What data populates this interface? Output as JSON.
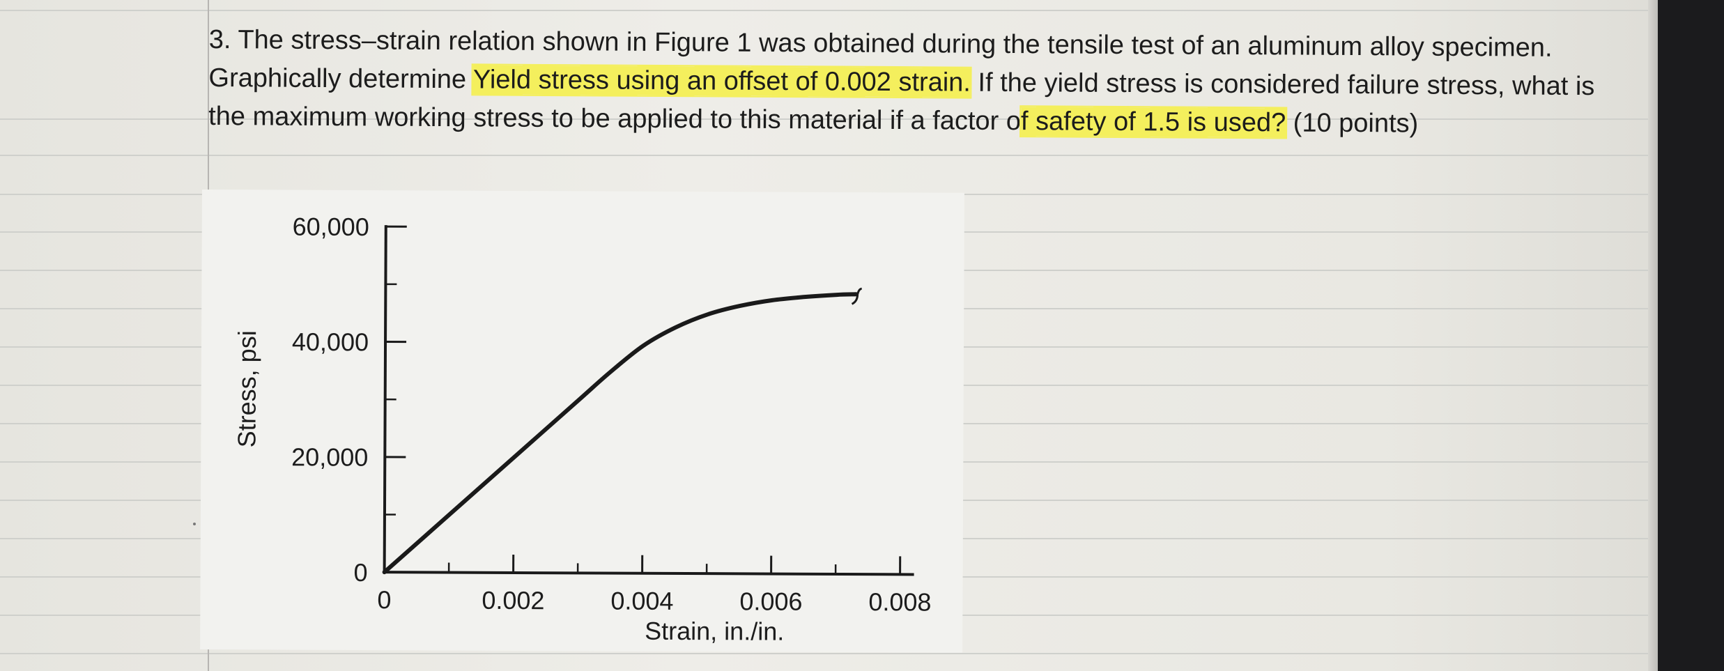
{
  "question": {
    "part1": "3. The stress–strain relation shown in Figure 1 was obtained during the tensile test of an aluminum alloy specimen. Graphically determine ",
    "highlight1": "Yield stress using an offset of 0.002 strain.",
    "part2": " If the yield stress is considered failure stress, what is the maximum working stress to be applied to this material if a factor o",
    "highlight2": "f safety of 1.5 is used?",
    "part3": " (10 points)"
  },
  "colors": {
    "highlight": "#f4ef5d",
    "curve": "#1a1a1a"
  },
  "chart_data": {
    "type": "line",
    "title": "",
    "xlabel": "Strain, in./in.",
    "ylabel": "Stress, psi",
    "xlim": [
      0,
      0.008
    ],
    "ylim": [
      0,
      60000
    ],
    "x_ticks": [
      {
        "value": 0,
        "label": "0"
      },
      {
        "value": 0.002,
        "label": "0.002"
      },
      {
        "value": 0.004,
        "label": "0.004"
      },
      {
        "value": 0.006,
        "label": "0.006"
      },
      {
        "value": 0.008,
        "label": "0.008"
      }
    ],
    "x_minor_ticks": [
      0.001,
      0.003,
      0.005,
      0.007
    ],
    "y_ticks": [
      {
        "value": 0,
        "label": "0"
      },
      {
        "value": 20000,
        "label": "20,000"
      },
      {
        "value": 40000,
        "label": "40,000"
      },
      {
        "value": 60000,
        "label": "60,000"
      }
    ],
    "y_minor_ticks": [
      10000,
      30000,
      50000
    ],
    "grid": false,
    "series": [
      {
        "x": [
          0,
          0.001,
          0.002,
          0.003,
          0.0035,
          0.004,
          0.0045,
          0.005,
          0.0055,
          0.006,
          0.0065,
          0.007,
          0.0073
        ],
        "y": [
          0,
          10000,
          20000,
          30000,
          35000,
          39500,
          42700,
          45000,
          46500,
          47500,
          48100,
          48500,
          48600
        ]
      }
    ]
  }
}
